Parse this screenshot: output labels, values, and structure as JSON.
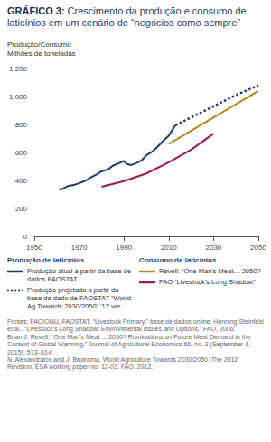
{
  "chart_data": {
    "type": "line",
    "title": "GRÁFICO 3: Crescimento da produção e consumo de laticínios em um cenário de “negócios como sempre”",
    "ylabel": [
      "Produção/Consumo",
      "Milhões de toneladas"
    ],
    "xlim": [
      1950,
      2050
    ],
    "xticks": [
      1950,
      1970,
      1990,
      2010,
      2030,
      2050
    ],
    "ylim": [
      0,
      1200
    ],
    "yticks": [
      0,
      200,
      400,
      600,
      800,
      {
        "value": 1000,
        "label": "1,000"
      },
      {
        "value": 1200,
        "label": "1,200"
      }
    ],
    "grid": false,
    "series": [
      {
        "name": "Produção atual a partir da base de dados FAOSTAT",
        "color": "#1e3a6e",
        "line_style": "solid",
        "x": [
          1961,
          1962,
          1965,
          1968,
          1970,
          1973,
          1975,
          1978,
          1980,
          1983,
          1985,
          1988,
          1990,
          1991,
          1993,
          1995,
          1998,
          2000,
          2003,
          2005,
          2008,
          2010,
          2013
        ],
        "values": [
          340,
          335,
          360,
          370,
          380,
          400,
          420,
          445,
          465,
          480,
          505,
          525,
          540,
          520,
          510,
          520,
          545,
          580,
          610,
          640,
          690,
          720,
          795
        ]
      },
      {
        "name": "Produção projetada a partir da base da dado de FAOSTAT “World Ag Towards 2030/2050” '12 ver",
        "color": "#1e3a6e",
        "line_style": "dotted",
        "x": [
          2013,
          2020,
          2030,
          2040,
          2050
        ],
        "values": [
          795,
          850,
          930,
          1010,
          1080
        ]
      },
      {
        "name": "Revell: “One Man's Meat… 2050?",
        "color": "#b8861f",
        "line_style": "solid",
        "x": [
          2010,
          2050
        ],
        "values": [
          660,
          1040
        ]
      },
      {
        "name": "FAO “Livestock's Long Shadow”",
        "color": "#a3175a",
        "line_style": "solid",
        "x": [
          1980,
          1990,
          2000,
          2010,
          2020,
          2030
        ],
        "values": [
          355,
          395,
          450,
          530,
          620,
          735
        ]
      }
    ],
    "legend_groups": [
      {
        "title": "Produção de laticínios",
        "members": [
          "Produção atual a partir da base de dados FAOSTAT",
          "Produção projetada a partir da base da dado de FAOSTAT “World Ag Towards 2030/2050” '12 ver"
        ]
      },
      {
        "title": "Consumo de laticínios",
        "members": [
          "Revell: “One Man's Meat… 2050?",
          "FAO “Livestock's Long Shadow”"
        ]
      }
    ],
    "source": [
      "Fontes: FAO/ONU, FAOSTAT, “Livestock Primary,” base de dados online; Henning Steinfeld et al., “Livestock's Long Shadow: Environmental Issues and Options,” FAO, 2006;",
      "Brian J. Revell, “One Man's Meat ... 2050? Ruminations on Future Meat Demand in the Context of Global Warming,” Journal of Agricultural Economics 66, no. 3 (September 1, 2015): 573–614;",
      "N. Alexandratos and J. Bruinsma, World Agriculture Towards 2030/2050: The 2012 Revision, ESA working paper no. 12-03, FAO, 2012."
    ]
  }
}
